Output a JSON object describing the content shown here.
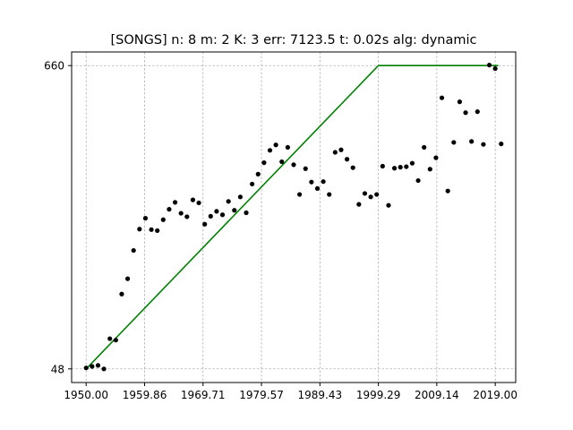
{
  "chart_data": {
    "type": "scatter",
    "title": "[SONGS] n: 8 m: 2 K: 3 err: 7123.5 t: 0.02s alg: dynamic",
    "xlabel": "",
    "ylabel": "",
    "xlim": [
      1947.55,
      2022.45
    ],
    "ylim": [
      20.5,
      687.5
    ],
    "grid": true,
    "x_ticks": [
      1950.0,
      1959.86,
      1969.71,
      1979.57,
      1989.43,
      1999.29,
      2009.14,
      2019.0
    ],
    "x_tick_labels": [
      "1950.00",
      "1959.86",
      "1969.71",
      "1979.57",
      "1989.43",
      "1999.29",
      "2009.14",
      "2019.00"
    ],
    "y_ticks": [
      48,
      660
    ],
    "y_tick_labels": [
      "48",
      "660"
    ],
    "colors": {
      "points": "#000000",
      "fit_line": "#008000",
      "grid": "#b0b0b0"
    },
    "series": [
      {
        "type": "scatter",
        "points": [
          [
            1950,
            50
          ],
          [
            1951,
            53
          ],
          [
            1952,
            55
          ],
          [
            1953,
            48
          ],
          [
            1954,
            109
          ],
          [
            1955,
            106
          ],
          [
            1956,
            199
          ],
          [
            1957,
            230
          ],
          [
            1958,
            287
          ],
          [
            1959,
            330
          ],
          [
            1960,
            352
          ],
          [
            1961,
            329
          ],
          [
            1962,
            327
          ],
          [
            1963,
            349
          ],
          [
            1964,
            370
          ],
          [
            1965,
            384
          ],
          [
            1966,
            362
          ],
          [
            1967,
            355
          ],
          [
            1968,
            389
          ],
          [
            1969,
            383
          ],
          [
            1970,
            340
          ],
          [
            1971,
            356
          ],
          [
            1972,
            366
          ],
          [
            1973,
            359
          ],
          [
            1974,
            386
          ],
          [
            1975,
            368
          ],
          [
            1976,
            395
          ],
          [
            1977,
            363
          ],
          [
            1978,
            421
          ],
          [
            1979,
            441
          ],
          [
            1980,
            464
          ],
          [
            1981,
            489
          ],
          [
            1982,
            500
          ],
          [
            1983,
            466
          ],
          [
            1984,
            495
          ],
          [
            1985,
            460
          ],
          [
            1986,
            400
          ],
          [
            1987,
            452
          ],
          [
            1988,
            425
          ],
          [
            1989,
            412
          ],
          [
            1990,
            426
          ],
          [
            1991,
            400
          ],
          [
            1992,
            485
          ],
          [
            1993,
            490
          ],
          [
            1994,
            471
          ],
          [
            1995,
            454
          ],
          [
            1996,
            380
          ],
          [
            1997,
            402
          ],
          [
            1998,
            395
          ],
          [
            1999,
            400
          ],
          [
            2000,
            457
          ],
          [
            2001,
            378
          ],
          [
            2002,
            453
          ],
          [
            2003,
            455
          ],
          [
            2004,
            456
          ],
          [
            2005,
            463
          ],
          [
            2006,
            428
          ],
          [
            2007,
            495
          ],
          [
            2008,
            451
          ],
          [
            2009,
            474
          ],
          [
            2010,
            595
          ],
          [
            2011,
            407
          ],
          [
            2012,
            505
          ],
          [
            2013,
            587
          ],
          [
            2014,
            565
          ],
          [
            2015,
            507
          ],
          [
            2016,
            567
          ],
          [
            2017,
            501
          ],
          [
            2018,
            661
          ],
          [
            2019,
            654
          ],
          [
            2020,
            502
          ]
        ]
      },
      {
        "type": "line",
        "points": [
          [
            1950,
            48
          ],
          [
            1999.29,
            660
          ],
          [
            2019.5,
            660
          ]
        ]
      }
    ]
  }
}
